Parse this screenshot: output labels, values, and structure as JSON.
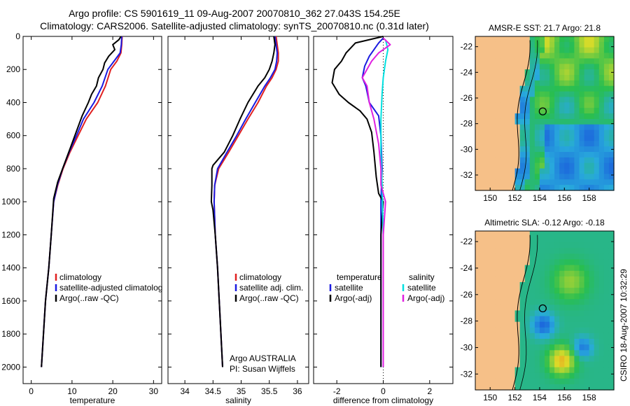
{
  "figure": {
    "title_line1": "Argo profile: CS 5901619_11 09-Aug-2007 20070810_362 27.043S 154.25E",
    "title_line2": "Climatology: CARS2006. Satellite-adjusted climatology: synTS_20070810.nc (0.31d later)",
    "side_text": "CSIRO 18-Aug-2007 10:32:29",
    "credit_line1": "Argo AUSTRALIA",
    "credit_line2": "PI: Susan Wijffels"
  },
  "colors": {
    "climatology": "#e02020",
    "satellite": "#1a1ae0",
    "argo": "#000000",
    "salinity_satellite": "#00e0e0",
    "salinity_argo": "#e020e0",
    "land": "#f6c088",
    "ocean_base": "#2bb84a"
  },
  "chart_data": [
    {
      "type": "line",
      "name": "temperature-panel",
      "xlabel": "temperature",
      "ylabel": "",
      "xlim": [
        -2,
        32
      ],
      "ylim": [
        2100,
        0
      ],
      "xticks": [
        "0",
        "10",
        "20",
        "30"
      ],
      "yticks": [
        "0",
        "200",
        "400",
        "600",
        "800",
        "1000",
        "1200",
        "1400",
        "1600",
        "1800",
        "2000"
      ],
      "legend": [
        "climatology",
        "satellite-adjusted climatolog",
        "Argo(..raw -QC)"
      ],
      "series": [
        {
          "name": "climatology",
          "color_key": "climatology",
          "points": [
            [
              22.3,
              0
            ],
            [
              22.2,
              50
            ],
            [
              22.0,
              100
            ],
            [
              21.0,
              150
            ],
            [
              19.5,
              200
            ],
            [
              18.2,
              300
            ],
            [
              16.3,
              400
            ],
            [
              13.5,
              500
            ],
            [
              11.5,
              600
            ],
            [
              9.5,
              700
            ],
            [
              7.8,
              800
            ],
            [
              6.5,
              900
            ],
            [
              5.5,
              1000
            ],
            [
              4.9,
              1200
            ],
            [
              4.3,
              1400
            ],
            [
              3.5,
              1600
            ],
            [
              3.0,
              1800
            ],
            [
              2.5,
              2000
            ]
          ]
        },
        {
          "name": "satellite-adjusted climatolog",
          "color_key": "satellite",
          "points": [
            [
              22.2,
              0
            ],
            [
              22.1,
              50
            ],
            [
              21.8,
              100
            ],
            [
              20.3,
              150
            ],
            [
              18.8,
              200
            ],
            [
              17.4,
              300
            ],
            [
              15.4,
              400
            ],
            [
              12.8,
              500
            ],
            [
              11.1,
              600
            ],
            [
              9.3,
              700
            ],
            [
              7.7,
              800
            ],
            [
              6.4,
              900
            ],
            [
              5.5,
              1000
            ],
            [
              4.9,
              1200
            ],
            [
              4.3,
              1400
            ],
            [
              3.5,
              1600
            ],
            [
              3.0,
              1800
            ],
            [
              2.5,
              2000
            ]
          ]
        },
        {
          "name": "Argo(..raw -QC)",
          "color_key": "argo",
          "points": [
            [
              22.0,
              0
            ],
            [
              21.5,
              20
            ],
            [
              20.0,
              50
            ],
            [
              20.5,
              80
            ],
            [
              19.0,
              120
            ],
            [
              18.0,
              160
            ],
            [
              17.6,
              200
            ],
            [
              16.5,
              250
            ],
            [
              16.0,
              300
            ],
            [
              14.8,
              350
            ],
            [
              14.0,
              400
            ],
            [
              12.5,
              480
            ],
            [
              11.0,
              580
            ],
            [
              9.5,
              680
            ],
            [
              8.0,
              780
            ],
            [
              6.5,
              880
            ],
            [
              5.5,
              980
            ],
            [
              4.9,
              1200
            ],
            [
              4.3,
              1400
            ],
            [
              3.5,
              1600
            ],
            [
              3.0,
              1800
            ],
            [
              2.5,
              2000
            ]
          ]
        }
      ]
    },
    {
      "type": "line",
      "name": "salinity-panel",
      "xlabel": "salinity",
      "ylabel": "",
      "xlim": [
        33.7,
        36.2
      ],
      "ylim": [
        2100,
        0
      ],
      "xticks": [
        "34",
        "34.5",
        "35",
        "35.5",
        "36"
      ],
      "legend": [
        "climatology",
        "satellite adj. clim.",
        "Argo(..raw -QC)"
      ],
      "series": [
        {
          "name": "climatology",
          "color_key": "climatology",
          "points": [
            [
              35.62,
              0
            ],
            [
              35.64,
              50
            ],
            [
              35.66,
              100
            ],
            [
              35.66,
              150
            ],
            [
              35.62,
              200
            ],
            [
              35.55,
              250
            ],
            [
              35.45,
              300
            ],
            [
              35.3,
              400
            ],
            [
              35.12,
              500
            ],
            [
              34.95,
              600
            ],
            [
              34.78,
              700
            ],
            [
              34.6,
              800
            ],
            [
              34.53,
              900
            ],
            [
              34.52,
              1000
            ],
            [
              34.54,
              1200
            ],
            [
              34.58,
              1400
            ],
            [
              34.61,
              1600
            ],
            [
              34.64,
              1800
            ],
            [
              34.67,
              2000
            ]
          ]
        },
        {
          "name": "satellite adj. clim.",
          "color_key": "satellite",
          "points": [
            [
              35.6,
              0
            ],
            [
              35.62,
              50
            ],
            [
              35.64,
              100
            ],
            [
              35.63,
              150
            ],
            [
              35.6,
              200
            ],
            [
              35.52,
              250
            ],
            [
              35.42,
              300
            ],
            [
              35.25,
              400
            ],
            [
              35.08,
              500
            ],
            [
              34.92,
              600
            ],
            [
              34.75,
              700
            ],
            [
              34.58,
              800
            ],
            [
              34.53,
              900
            ],
            [
              34.52,
              1000
            ],
            [
              34.54,
              1200
            ],
            [
              34.58,
              1400
            ],
            [
              34.61,
              1600
            ],
            [
              34.64,
              1800
            ],
            [
              34.67,
              2000
            ]
          ]
        },
        {
          "name": "Argo(..raw -QC)",
          "color_key": "argo",
          "points": [
            [
              35.58,
              0
            ],
            [
              35.6,
              50
            ],
            [
              35.58,
              100
            ],
            [
              35.55,
              150
            ],
            [
              35.5,
              200
            ],
            [
              35.42,
              250
            ],
            [
              35.3,
              300
            ],
            [
              35.12,
              400
            ],
            [
              34.98,
              500
            ],
            [
              34.85,
              600
            ],
            [
              34.7,
              700
            ],
            [
              34.5,
              780
            ],
            [
              34.48,
              800
            ],
            [
              34.48,
              900
            ],
            [
              34.47,
              1000
            ],
            [
              34.5,
              1050
            ],
            [
              34.54,
              1200
            ],
            [
              34.58,
              1400
            ],
            [
              34.61,
              1600
            ],
            [
              34.64,
              1800
            ],
            [
              34.67,
              2000
            ]
          ]
        }
      ]
    },
    {
      "type": "line",
      "name": "difference-panel",
      "xlabel": "difference from climatology",
      "ylabel": "",
      "xlim": [
        -3,
        3
      ],
      "ylim": [
        2100,
        0
      ],
      "xticks": [
        "-2",
        "0",
        "2"
      ],
      "legend": [
        "temperature",
        "satellite",
        "Argo(-adj)",
        "salinity",
        "satellite",
        "Argo(-adj)"
      ],
      "series": [
        {
          "name": "temperature satellite",
          "color_key": "satellite",
          "points": [
            [
              0.0,
              10
            ],
            [
              -0.2,
              40
            ],
            [
              -0.6,
              120
            ],
            [
              -0.8,
              180
            ],
            [
              -0.9,
              250
            ],
            [
              -0.75,
              300
            ],
            [
              -0.6,
              400
            ],
            [
              -0.2,
              480
            ],
            [
              -0.1,
              600
            ],
            [
              -0.05,
              800
            ],
            [
              -0.1,
              1000
            ],
            [
              -0.1,
              1200
            ],
            [
              -0.1,
              1400
            ],
            [
              -0.1,
              1600
            ],
            [
              -0.1,
              1800
            ],
            [
              -0.1,
              2000
            ]
          ]
        },
        {
          "name": "temperature Argo(-adj)",
          "color_key": "argo",
          "points": [
            [
              0.0,
              0
            ],
            [
              -1.2,
              40
            ],
            [
              -1.6,
              100
            ],
            [
              -1.8,
              150
            ],
            [
              -2.1,
              200
            ],
            [
              -2.2,
              280
            ],
            [
              -1.9,
              350
            ],
            [
              -1.5,
              400
            ],
            [
              -1.0,
              450
            ],
            [
              -0.7,
              500
            ],
            [
              -0.5,
              580
            ],
            [
              -0.4,
              700
            ],
            [
              -0.3,
              850
            ],
            [
              -0.2,
              950
            ],
            [
              0.0,
              1000
            ],
            [
              -0.1,
              1200
            ],
            [
              -0.1,
              1400
            ],
            [
              -0.1,
              1600
            ],
            [
              -0.1,
              1800
            ],
            [
              -0.1,
              2000
            ]
          ]
        },
        {
          "name": "salinity satellite",
          "color_key": "salinity_satellite",
          "points": [
            [
              0.1,
              20
            ],
            [
              0.2,
              80
            ],
            [
              0.1,
              150
            ],
            [
              0.0,
              250
            ],
            [
              -0.05,
              350
            ],
            [
              -0.1,
              500
            ],
            [
              -0.1,
              700
            ],
            [
              -0.05,
              900
            ],
            [
              0.0,
              1200
            ],
            [
              0.0,
              1600
            ],
            [
              0.0,
              2000
            ]
          ]
        },
        {
          "name": "salinity Argo(-adj)",
          "color_key": "salinity_argo",
          "points": [
            [
              0.0,
              10
            ],
            [
              0.3,
              50
            ],
            [
              -0.2,
              100
            ],
            [
              -0.5,
              150
            ],
            [
              -0.9,
              250
            ],
            [
              -0.7,
              300
            ],
            [
              -0.6,
              400
            ],
            [
              -0.4,
              500
            ],
            [
              -0.2,
              650
            ],
            [
              -0.1,
              800
            ],
            [
              -0.1,
              900
            ],
            [
              0.1,
              1000
            ],
            [
              0.0,
              1200
            ],
            [
              0.0,
              1600
            ],
            [
              0.0,
              2000
            ]
          ]
        }
      ]
    },
    {
      "type": "heatmap",
      "name": "sst-map",
      "title": "AMSR-E SST: 21.7 Argo: 21.8",
      "xlim": [
        148.8,
        160
      ],
      "ylim": [
        -33.2,
        -21.2
      ],
      "xticks": [
        "150",
        "152",
        "154",
        "156",
        "158"
      ],
      "yticks": [
        "-22",
        "-24",
        "-26",
        "-28",
        "-30",
        "-32"
      ],
      "profile_location": {
        "lon": 154.25,
        "lat": -27.043
      }
    },
    {
      "type": "heatmap",
      "name": "sla-map",
      "title": "Altimetric SLA: -0.12 Argo: -0.18",
      "xlim": [
        148.8,
        160
      ],
      "ylim": [
        -33.2,
        -21.2
      ],
      "xticks": [
        "150",
        "152",
        "154",
        "156",
        "158"
      ],
      "yticks": [
        "-22",
        "-24",
        "-26",
        "-28",
        "-30",
        "-32"
      ],
      "profile_location": {
        "lon": 154.25,
        "lat": -27.043
      }
    }
  ]
}
